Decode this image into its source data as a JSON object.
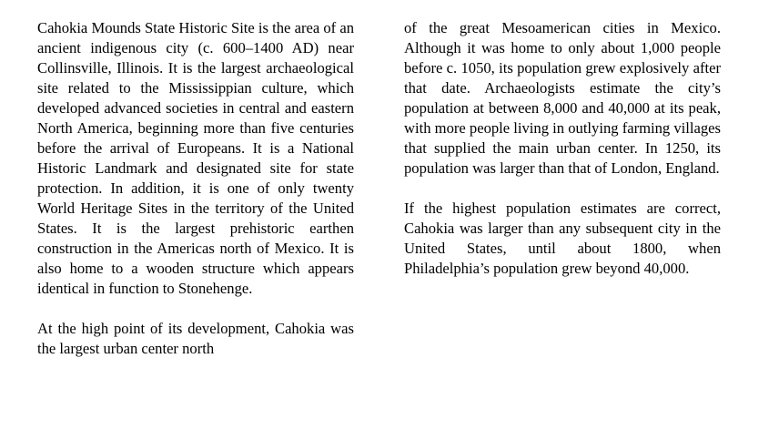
{
  "document": {
    "paragraphs": [
      "Cahokia Mounds State Historic Site is the area of an ancient indigenous city (c. 600–1400 AD) near Collinsville, Illinois. It is the largest archaeological site related to the Mississippian culture, which developed advanced societies in central and eastern North America, beginning more than five centuries before the arrival of Europeans. It is a National Historic Landmark and designated site for state protection. In addition, it is one of only twenty World Heritage Sites in the territory of the United States. It is the largest prehistoric earthen construction in the Americas north of Mexico. It is also home to a wooden structure which appears identical in function to Stonehenge.",
      "At the high point of its development, Cahokia was the largest urban center north",
      "of the great Mesoamerican cities in Mexico. Although it was home to only about 1,000 people before c. 1050, its population grew explosively after that date. Archaeologists estimate the city’s population at between 8,000 and 40,000 at its peak, with more people living in outlying farming villages that supplied the main urban center. In 1250, its population was larger than that of London, England.",
      "If the highest population estimates are correct, Cahokia was larger than any subsequent city in the United States, until about 1800, when Philadelphia’s population grew beyond 40,000."
    ]
  }
}
